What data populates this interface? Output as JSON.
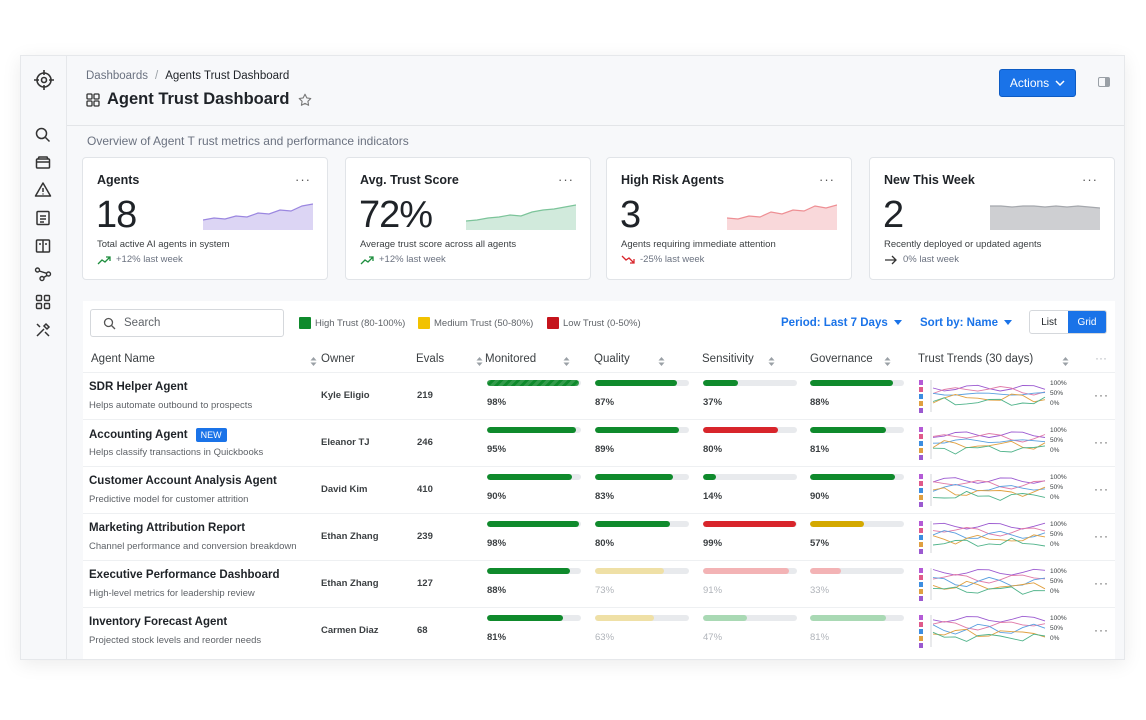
{
  "breadcrumb": {
    "parent": "Dashboards",
    "separator": "/",
    "current": "Agents Trust Dashboard"
  },
  "page_title": "Agent Trust Dashboard",
  "actions_label": "Actions",
  "overview_text": "Overview of Agent T rust metrics and performance indicators",
  "cards": [
    {
      "title": "Agents",
      "value": "18",
      "desc": "Total active AI agents in system",
      "change": "+12% last week",
      "trend": "up",
      "color": "#9b87e0"
    },
    {
      "title": "Avg. Trust Score",
      "value": "72%",
      "desc": "Average trust score across all agents",
      "change": "+12% last week",
      "trend": "up",
      "color": "#7cc49a"
    },
    {
      "title": "High Risk Agents",
      "value": "3",
      "desc": "Agents requiring immediate attention",
      "change": "-25% last week",
      "trend": "down",
      "color": "#ee8f94"
    },
    {
      "title": "New This Week",
      "value": "2",
      "desc": "Recently deployed or updated agents",
      "change": "0% last week",
      "trend": "flat",
      "color": "#a5a8ad"
    }
  ],
  "search": {
    "placeholder": "Search"
  },
  "legend": [
    {
      "label": "High Trust (80-100%)",
      "color": "#0f8a2c"
    },
    {
      "label": "Medium Trust (50-80%)",
      "color": "#f2c200"
    },
    {
      "label": "Low Trust (0-50%)",
      "color": "#c5141c"
    }
  ],
  "period_label": "Period: Last 7  Days",
  "sort_label": "Sort by: Name",
  "view_toggle": {
    "list": "List",
    "grid": "Grid",
    "active": "Grid"
  },
  "columns": [
    "Agent Name",
    "Owner",
    "Evals",
    "Monitored",
    "Quality",
    "Sensitivity",
    "Governance",
    "Trust Trends (30 days)"
  ],
  "colors": {
    "high": "#0f8a2c",
    "medium": "#d4a900",
    "low": "#d8252b",
    "accent": "#1a73e8"
  },
  "trend_axis": [
    "100%",
    "50%",
    "0%"
  ],
  "rows": [
    {
      "name": "SDR Helper Agent",
      "badge": "",
      "desc": "Helps automate outbound to prospects",
      "owner": "Kyle Eligio",
      "evals": "219",
      "metrics": [
        {
          "v": 98,
          "label": "98%",
          "level": "high"
        },
        {
          "v": 87,
          "label": "87%",
          "level": "high"
        },
        {
          "v": 37,
          "label": "37%",
          "level": "high"
        },
        {
          "v": 88,
          "label": "88%",
          "level": "high"
        }
      ]
    },
    {
      "name": "Accounting Agent",
      "badge": "NEW",
      "desc": "Helps classify transactions in Quickbooks",
      "owner": "Eleanor  TJ",
      "evals": "246",
      "metrics": [
        {
          "v": 95,
          "label": "95%",
          "level": "high"
        },
        {
          "v": 89,
          "label": "89%",
          "level": "high"
        },
        {
          "v": 80,
          "label": "80%",
          "level": "low"
        },
        {
          "v": 81,
          "label": "81%",
          "level": "high"
        }
      ]
    },
    {
      "name": "Customer Account Analysis Agent",
      "badge": "",
      "desc": "Predictive model for customer attrition",
      "owner": "David Kim",
      "evals": "410",
      "metrics": [
        {
          "v": 90,
          "label": "90%",
          "level": "high"
        },
        {
          "v": 83,
          "label": "83%",
          "level": "high"
        },
        {
          "v": 14,
          "label": "14%",
          "level": "high"
        },
        {
          "v": 90,
          "label": "90%",
          "level": "high"
        }
      ]
    },
    {
      "name": "Marketing Attribution Report",
      "badge": "",
      "desc": "Channel performance and conversion breakdown",
      "owner": "Ethan Zhang",
      "evals": "239",
      "metrics": [
        {
          "v": 98,
          "label": "98%",
          "level": "high"
        },
        {
          "v": 80,
          "label": "80%",
          "level": "high"
        },
        {
          "v": 99,
          "label": "99%",
          "level": "low"
        },
        {
          "v": 57,
          "label": "57%",
          "level": "medium"
        }
      ]
    },
    {
      "name": "Executive Performance Dashboard",
      "badge": "",
      "desc": "High-level metrics for leadership review",
      "owner": "Ethan Zhang",
      "evals": "127",
      "metrics": [
        {
          "v": 88,
          "label": "88%",
          "level": "high"
        },
        {
          "v": 73,
          "label": "73%",
          "level": "medium-faded"
        },
        {
          "v": 91,
          "label": "91%",
          "level": "low-faded"
        },
        {
          "v": 33,
          "label": "33%",
          "level": "low-faded"
        }
      ]
    },
    {
      "name": "Inventory Forecast Agent",
      "badge": "",
      "desc": "Projected stock levels and reorder needs",
      "owner": "Carmen Diaz",
      "evals": "68",
      "metrics": [
        {
          "v": 81,
          "label": "81%",
          "level": "high"
        },
        {
          "v": 63,
          "label": "63%",
          "level": "medium-faded"
        },
        {
          "v": 47,
          "label": "47%",
          "level": "high-faded"
        },
        {
          "v": 81,
          "label": "81%",
          "level": "high-faded"
        }
      ]
    }
  ]
}
